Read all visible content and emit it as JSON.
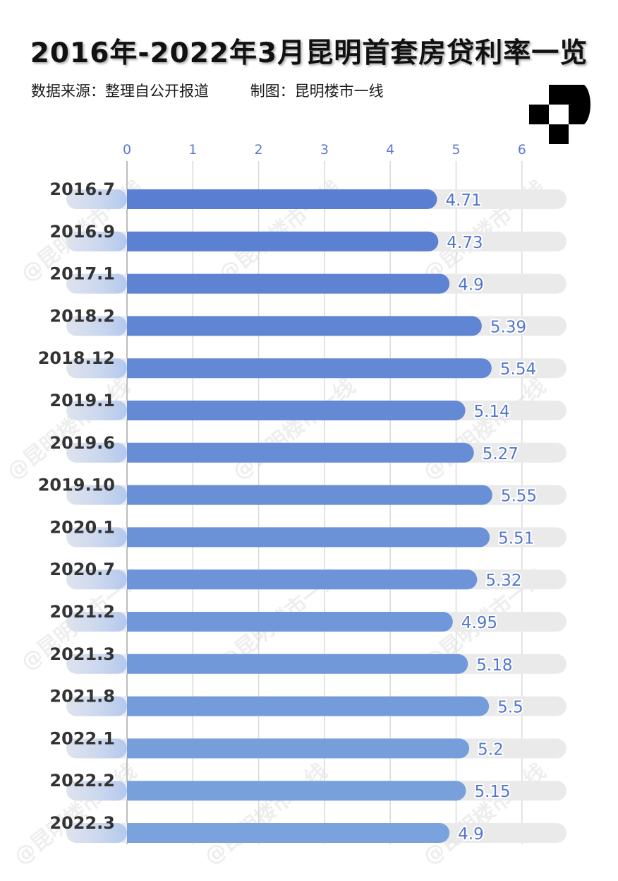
{
  "title": "2016年-2022年3月昆明首套房贷利率一览",
  "subtitle": {
    "source": "数据来源：整理自公开报道",
    "author": "制图：昆明楼市一线"
  },
  "watermark_text": "@昆明楼市一线",
  "colors": {
    "bar_dark": "#5a7ed1",
    "bar_light": "#7aa3dd",
    "track": "#eaeaea",
    "value_text": "#5276cc",
    "tick_text": "#5b7bd0"
  },
  "chart_data": {
    "type": "bar",
    "orientation": "horizontal",
    "title": "2016年-2022年3月昆明首套房贷利率一览",
    "categories": [
      "2016.7",
      "2016.9",
      "2017.1",
      "2018.2",
      "2018.12",
      "2019.1",
      "2019.6",
      "2019.10",
      "2020.1",
      "2020.7",
      "2021.2",
      "2021.3",
      "2021.8",
      "2022.1",
      "2022.2",
      "2022.3"
    ],
    "values": [
      4.71,
      4.73,
      4.9,
      5.39,
      5.54,
      5.14,
      5.27,
      5.55,
      5.51,
      5.32,
      4.95,
      5.18,
      5.5,
      5.2,
      5.15,
      4.9
    ],
    "value_labels": [
      "4.71",
      "4.73",
      "4.9",
      "5.39",
      "5.54",
      "5.14",
      "5.27",
      "5.55",
      "5.51",
      "5.32",
      "4.95",
      "5.18",
      "5.5",
      "5.2",
      "5.15",
      "4.9"
    ],
    "x_ticks": [
      "0",
      "1",
      "2",
      "3",
      "4",
      "5",
      "6"
    ],
    "xlim": [
      0,
      6.7
    ],
    "grid": true,
    "axis_position": "top"
  }
}
